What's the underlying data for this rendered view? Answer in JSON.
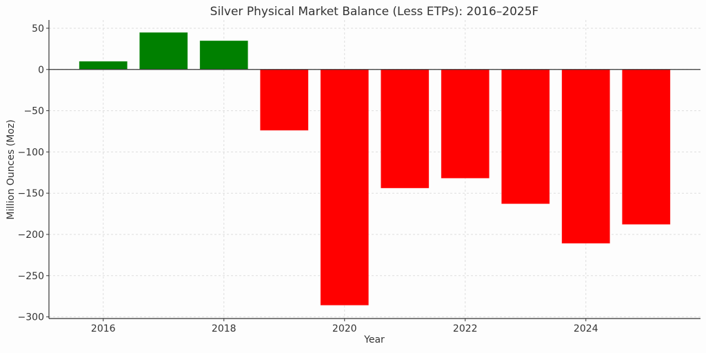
{
  "chart_data": {
    "type": "bar",
    "title": "Silver Physical Market Balance (Less ETPs): 2016–2025F",
    "xlabel": "Year",
    "ylabel": "Million Ounces (Moz)",
    "categories": [
      2016,
      2017,
      2018,
      2019,
      2020,
      2021,
      2022,
      2023,
      2024,
      2025
    ],
    "values": [
      10,
      45,
      35,
      -74,
      -286,
      -144,
      -132,
      -163,
      -211,
      -188
    ],
    "xlim": [
      2015.1,
      2025.9
    ],
    "ylim": [
      -302,
      60
    ],
    "xticks": [
      2016,
      2018,
      2020,
      2022,
      2024
    ],
    "yticks": [
      50,
      0,
      -50,
      -100,
      -150,
      -200,
      -250,
      -300
    ],
    "ytick_labels": [
      "50",
      "0",
      "−50",
      "−100",
      "−150",
      "−200",
      "−250",
      "−300"
    ],
    "grid": true,
    "colors": {
      "positive": "#008000",
      "negative": "#ff0000",
      "zero_line": "#333333",
      "grid": "#dddddd"
    }
  }
}
